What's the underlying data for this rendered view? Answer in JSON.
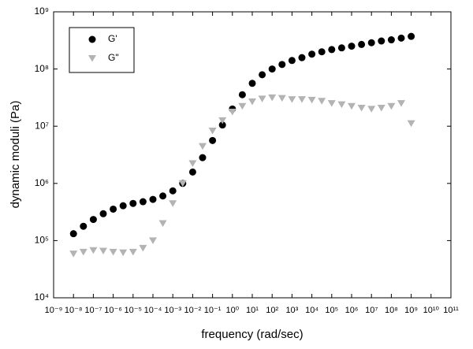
{
  "chart_data": {
    "type": "scatter",
    "xlabel": "frequency (rad/sec)",
    "ylabel": "dynamic moduli (Pa)",
    "xscale": "log",
    "yscale": "log",
    "xlim": [
      1e-09,
      100000000000.0
    ],
    "ylim": [
      10000.0,
      1000000000.0
    ],
    "xticks": [
      {
        "value": 1e-09,
        "label": "10⁻⁹"
      },
      {
        "value": 1e-08,
        "label": "10⁻⁸"
      },
      {
        "value": 1e-07,
        "label": "10⁻⁷"
      },
      {
        "value": 1e-06,
        "label": "10⁻⁶"
      },
      {
        "value": 1e-05,
        "label": "10⁻⁵"
      },
      {
        "value": 0.0001,
        "label": "10⁻⁴"
      },
      {
        "value": 0.001,
        "label": "10⁻³"
      },
      {
        "value": 0.01,
        "label": "10⁻²"
      },
      {
        "value": 0.1,
        "label": "10⁻¹"
      },
      {
        "value": 1,
        "label": "10⁰"
      },
      {
        "value": 10,
        "label": "10¹"
      },
      {
        "value": 100,
        "label": "10²"
      },
      {
        "value": 1000,
        "label": "10³"
      },
      {
        "value": 10000.0,
        "label": "10⁴"
      },
      {
        "value": 100000.0,
        "label": "10⁵"
      },
      {
        "value": 1000000.0,
        "label": "10⁶"
      },
      {
        "value": 10000000.0,
        "label": "10⁷"
      },
      {
        "value": 100000000.0,
        "label": "10⁸"
      },
      {
        "value": 1000000000.0,
        "label": "10⁹"
      },
      {
        "value": 10000000000.0,
        "label": "10¹⁰"
      },
      {
        "value": 100000000000.0,
        "label": "10¹¹"
      }
    ],
    "yticks": [
      {
        "value": 10000.0,
        "label": "10⁴"
      },
      {
        "value": 100000.0,
        "label": "10⁵"
      },
      {
        "value": 1000000.0,
        "label": "10⁶"
      },
      {
        "value": 10000000.0,
        "label": "10⁷"
      },
      {
        "value": 100000000.0,
        "label": "10⁸"
      },
      {
        "value": 1000000000.0,
        "label": "10⁹"
      }
    ],
    "grid": false,
    "legend": "upper left",
    "series": [
      {
        "name": "G'",
        "color": "#000000",
        "marker": "circle",
        "x": [
          1e-08,
          3.16e-08,
          1e-07,
          3.16e-07,
          1e-06,
          3.16e-06,
          1e-05,
          3.16e-05,
          0.0001,
          0.000316,
          0.001,
          0.00316,
          0.01,
          0.0316,
          0.1,
          0.316,
          1,
          3.16,
          10,
          31.6,
          100,
          316,
          1000,
          3160,
          10000.0,
          31600.0,
          100000.0,
          316000.0,
          1000000.0,
          3160000.0,
          10000000.0,
          31600000.0,
          100000000.0,
          316000000.0,
          1000000000.0
        ],
        "values": [
          132000,
          178000,
          234000,
          295000,
          355000,
          407000,
          447000,
          479000,
          525000,
          603000,
          741000,
          1000000,
          1580000,
          2820000,
          5620000,
          10500000,
          20000000,
          35500000,
          56200000,
          79400000,
          100000000,
          120000000,
          141000000,
          158000000,
          182000000,
          200000000,
          219000000,
          234000000,
          251000000,
          269000000,
          288000000,
          309000000,
          324000000,
          347000000,
          372000000
        ]
      },
      {
        "name": "G\"",
        "color": "#b3b3b3",
        "marker": "triangle-down",
        "x": [
          1e-08,
          3.16e-08,
          1e-07,
          3.16e-07,
          1e-06,
          3.16e-06,
          1e-05,
          3.16e-05,
          0.0001,
          0.000316,
          0.001,
          0.00316,
          0.01,
          0.0316,
          0.1,
          0.316,
          1,
          3.16,
          10,
          31.6,
          100,
          316,
          1000,
          3160,
          10000.0,
          31600.0,
          100000.0,
          316000.0,
          1000000.0,
          3160000.0,
          10000000.0,
          31600000.0,
          100000000.0,
          316000000.0,
          1000000000.0
        ],
        "values": [
          58900,
          63100,
          67600,
          66100,
          63100,
          61700,
          63100,
          74100,
          100000,
          200000,
          447000,
          1000000,
          2240000,
          4470000,
          8320000,
          12600000,
          17800000,
          22400000,
          26900000,
          30200000,
          31600000,
          30900000,
          29500000,
          29500000,
          28800000,
          27500000,
          25100000,
          24000000,
          22400000,
          20900000,
          20000000,
          20900000,
          22400000,
          25100000,
          11200000
        ]
      }
    ]
  }
}
